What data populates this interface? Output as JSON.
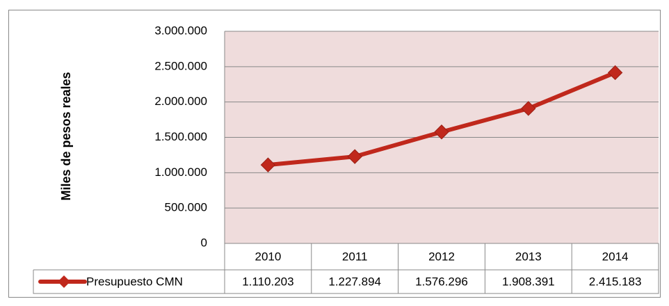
{
  "chart_data": {
    "type": "line",
    "y_axis_label": "Miles de pesos reales",
    "categories": [
      "2010",
      "2011",
      "2012",
      "2013",
      "2014"
    ],
    "series": [
      {
        "name": "Presupuesto CMN",
        "color": "#c0281c",
        "values": [
          1110203,
          1227894,
          1576296,
          1908391,
          2415183
        ],
        "value_labels": [
          "1.110.203",
          "1.227.894",
          "1.576.296",
          "1.908.391",
          "2.415.183"
        ]
      }
    ],
    "ylim": [
      0,
      3000000
    ],
    "yticks": [
      {
        "value": 0,
        "label": "0"
      },
      {
        "value": 500000,
        "label": "500.000"
      },
      {
        "value": 1000000,
        "label": "1.000.000"
      },
      {
        "value": 1500000,
        "label": "1.500.000"
      },
      {
        "value": 2000000,
        "label": "2.000.000"
      },
      {
        "value": 2500000,
        "label": "2.500.000"
      },
      {
        "value": 3000000,
        "label": "3.000.000"
      }
    ],
    "grid": true,
    "plot_background": "#efdcdc"
  }
}
